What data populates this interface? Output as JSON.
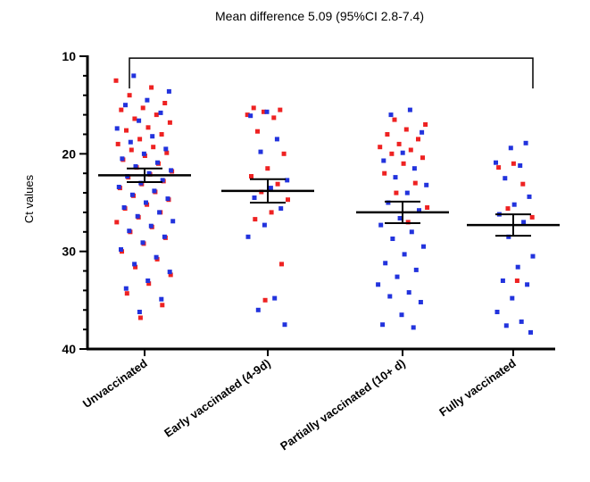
{
  "chart_data": {
    "type": "scatter",
    "title": "Mean difference 5.09 (95%CI 2.8-7.4)",
    "xlabel": "",
    "ylabel": "Ct values",
    "ylim": [
      10,
      40
    ],
    "y_inverted": true,
    "yticks": [
      "10",
      "20",
      "30",
      "40"
    ],
    "grid": false,
    "legend": "none",
    "colors": {
      "red": "#ee2222",
      "blue": "#2233dd"
    },
    "categories": [
      "Unvaccinated",
      "Early vaccinated (4-9d)",
      "Partially vaccinated (10+ d)",
      "Fully vaccinated"
    ],
    "summary": [
      {
        "category": "Unvaccinated",
        "mean": 22.2,
        "ci_low": 21.5,
        "ci_high": 22.9
      },
      {
        "category": "Early vaccinated (4-9d)",
        "mean": 23.8,
        "ci_low": 22.6,
        "ci_high": 25.0
      },
      {
        "category": "Partially vaccinated (10+ d)",
        "mean": 26.0,
        "ci_low": 24.9,
        "ci_high": 27.1
      },
      {
        "category": "Fully vaccinated",
        "mean": 27.3,
        "ci_low": 26.2,
        "ci_high": 28.4
      }
    ],
    "comparison_bracket": {
      "from": "Unvaccinated",
      "to": "Fully vaccinated",
      "y": 10.2
    },
    "points": [
      {
        "category": "Unvaccinated",
        "red": [
          12.5,
          13.2,
          14.0,
          14.8,
          15.3,
          15.5,
          16.0,
          16.4,
          16.8,
          17.3,
          17.6,
          18.0,
          18.5,
          19.0,
          19.3,
          19.6,
          19.9,
          20.2,
          20.6,
          21.0,
          21.4,
          21.8,
          22.1,
          22.4,
          22.8,
          23.1,
          23.5,
          23.9,
          24.3,
          24.7,
          25.2,
          25.6,
          26.0,
          26.5,
          27.0,
          27.5,
          28.0,
          28.6,
          29.2,
          30.0,
          30.8,
          31.6,
          32.4,
          33.3,
          34.3,
          35.5,
          36.8
        ],
        "blue": [
          12.0,
          13.6,
          14.5,
          15.0,
          15.8,
          16.6,
          17.4,
          18.2,
          18.8,
          19.5,
          20.0,
          20.5,
          20.9,
          21.3,
          21.7,
          22.0,
          22.3,
          22.7,
          23.0,
          23.4,
          23.8,
          24.2,
          24.6,
          25.0,
          25.5,
          26.0,
          26.4,
          26.9,
          27.4,
          27.9,
          28.5,
          29.1,
          29.8,
          30.6,
          31.3,
          32.1,
          33.0,
          33.8,
          34.9,
          36.2
        ]
      },
      {
        "category": "Early vaccinated (4-9d)",
        "red": [
          15.3,
          15.5,
          15.7,
          16.0,
          16.3,
          17.7,
          20.0,
          21.5,
          22.3,
          23.1,
          23.9,
          24.7,
          26.0,
          26.7,
          31.3,
          35.0
        ],
        "blue": [
          15.7,
          16.1,
          18.5,
          19.8,
          22.7,
          23.5,
          24.5,
          25.6,
          27.3,
          28.5,
          34.8,
          36.0,
          37.5
        ]
      },
      {
        "category": "Partially vaccinated (10+ d)",
        "red": [
          16.5,
          17.0,
          17.5,
          18.0,
          18.5,
          19.0,
          19.3,
          19.6,
          20.0,
          20.4,
          21.0,
          22.0,
          23.0,
          24.0,
          25.5,
          27.0
        ],
        "blue": [
          15.5,
          16.0,
          17.8,
          19.9,
          20.7,
          21.5,
          22.4,
          23.2,
          24.0,
          25.0,
          25.8,
          26.6,
          27.3,
          28.0,
          28.7,
          29.5,
          30.3,
          31.2,
          31.9,
          32.6,
          33.4,
          34.2,
          34.6,
          35.2,
          36.5,
          37.5,
          37.8
        ]
      },
      {
        "category": "Fully vaccinated",
        "red": [
          21.0,
          21.4,
          23.1,
          25.6,
          26.5,
          33.0
        ],
        "blue": [
          18.9,
          19.4,
          20.9,
          21.2,
          22.5,
          24.4,
          25.2,
          26.2,
          27.0,
          28.5,
          30.5,
          31.6,
          33.0,
          33.4,
          34.8,
          36.2,
          37.2,
          37.6,
          38.3
        ]
      }
    ]
  }
}
